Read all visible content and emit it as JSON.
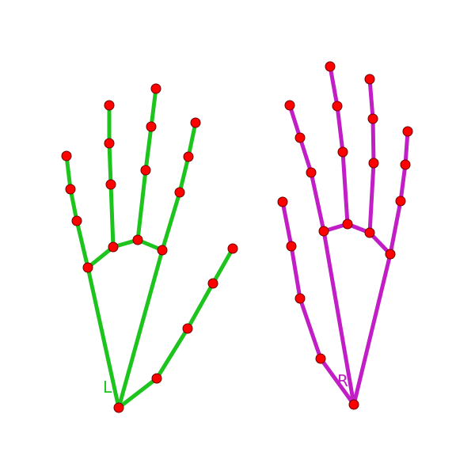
{
  "colors": {
    "background": "#ffffff",
    "left_hand": "#1ec41e",
    "right_hand": "#c21ec6",
    "joint_fill": "#ff0000",
    "joint_stroke": "#6a0000"
  },
  "hands": [
    {
      "id": "left",
      "label": "L",
      "color_key": "left_hand",
      "bones": [
        [
          0,
          1
        ],
        [
          1,
          2
        ],
        [
          2,
          3
        ],
        [
          3,
          4
        ],
        [
          0,
          5
        ],
        [
          5,
          6
        ],
        [
          6,
          7
        ],
        [
          7,
          8
        ],
        [
          5,
          9
        ],
        [
          9,
          10
        ],
        [
          10,
          11
        ],
        [
          11,
          12
        ],
        [
          9,
          13
        ],
        [
          13,
          14
        ],
        [
          14,
          15
        ],
        [
          15,
          16
        ],
        [
          0,
          17
        ],
        [
          13,
          17
        ],
        [
          17,
          18
        ],
        [
          18,
          19
        ],
        [
          19,
          20
        ]
      ]
    },
    {
      "id": "right",
      "label": "R",
      "color_key": "right_hand",
      "bones": [
        [
          0,
          1
        ],
        [
          1,
          2
        ],
        [
          2,
          3
        ],
        [
          3,
          4
        ],
        [
          0,
          5
        ],
        [
          5,
          6
        ],
        [
          6,
          7
        ],
        [
          7,
          8
        ],
        [
          5,
          9
        ],
        [
          9,
          10
        ],
        [
          10,
          11
        ],
        [
          11,
          12
        ],
        [
          9,
          13
        ],
        [
          13,
          14
        ],
        [
          14,
          15
        ],
        [
          15,
          16
        ],
        [
          0,
          17
        ],
        [
          13,
          17
        ],
        [
          17,
          18
        ],
        [
          18,
          19
        ],
        [
          19,
          20
        ]
      ]
    }
  ]
}
